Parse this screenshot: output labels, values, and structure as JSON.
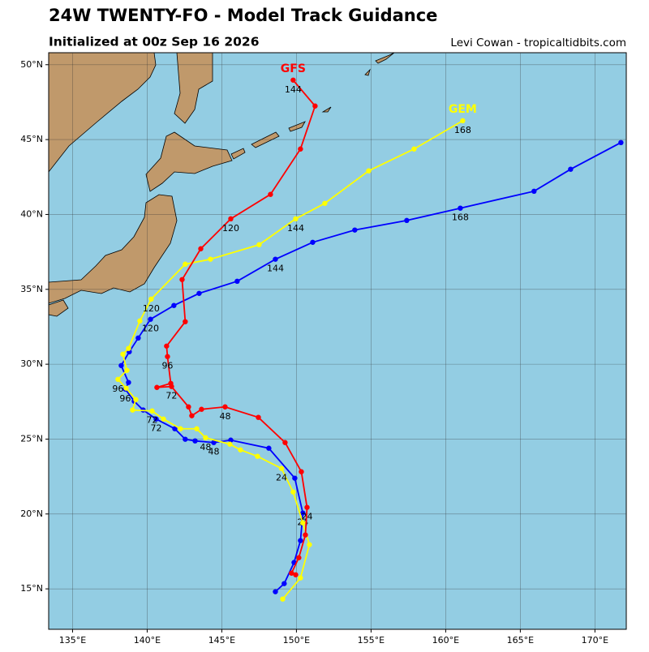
{
  "chart_data": {
    "type": "track-map",
    "title": "24W TWENTY-FO - Model Track Guidance",
    "subtitle": "Initialized at 00z Sep 16 2026",
    "credit": "Levi Cowan - tropicaltidbits.com",
    "xlim": [
      133.4,
      172.1
    ],
    "ylim": [
      12.3,
      50.8
    ],
    "xticks": [
      {
        "value": 135,
        "label": "135°E"
      },
      {
        "value": 140,
        "label": "140°E"
      },
      {
        "value": 145,
        "label": "145°E"
      },
      {
        "value": 150,
        "label": "150°E"
      },
      {
        "value": 155,
        "label": "155°E"
      },
      {
        "value": 160,
        "label": "160°E"
      },
      {
        "value": 165,
        "label": "165°E"
      },
      {
        "value": 170,
        "label": "170°E"
      }
    ],
    "yticks": [
      {
        "value": 15,
        "label": "15°N"
      },
      {
        "value": 20,
        "label": "20°N"
      },
      {
        "value": 25,
        "label": "25°N"
      },
      {
        "value": 30,
        "label": "30°N"
      },
      {
        "value": 35,
        "label": "35°N"
      },
      {
        "value": 40,
        "label": "40°N"
      },
      {
        "value": 45,
        "label": "45°N"
      },
      {
        "value": 50,
        "label": "50°N"
      }
    ],
    "grid": true,
    "series": [
      {
        "color": "#0000ff",
        "lon": [
          148.59,
          149.18,
          149.84,
          150.27,
          150.43,
          149.89,
          148.15,
          145.6,
          144.46,
          143.21,
          142.55,
          141.85,
          140.6,
          139.73,
          139.13,
          138.53,
          138.75,
          138.26,
          138.8,
          139.4,
          140.22,
          141.79,
          143.48,
          146.03,
          148.59,
          151.09,
          153.91,
          157.39,
          160.98,
          165.92,
          168.37,
          171.74
        ],
        "lat": [
          14.81,
          15.35,
          16.76,
          18.22,
          20.06,
          22.39,
          24.39,
          24.93,
          24.77,
          24.88,
          24.99,
          25.69,
          26.34,
          26.94,
          27.53,
          28.34,
          28.78,
          29.91,
          30.83,
          31.75,
          33.0,
          33.92,
          34.73,
          35.54,
          37.01,
          38.14,
          38.96,
          39.6,
          40.42,
          41.55,
          43.02,
          44.8
        ],
        "labels": [
          null,
          null,
          null,
          null,
          "24",
          null,
          null,
          null,
          "48",
          null,
          null,
          null,
          "72",
          null,
          null,
          "96",
          null,
          null,
          null,
          null,
          "120",
          null,
          null,
          null,
          "144",
          null,
          null,
          null,
          "168",
          null,
          null,
          null
        ]
      },
      {
        "name": "GEM",
        "color": "#ffff00",
        "lon": [
          149.08,
          150.27,
          150.87,
          150.43,
          149.78,
          149.0,
          147.39,
          146.25,
          145.54,
          143.91,
          143.32,
          142.23,
          141.09,
          140.33,
          139.02,
          139.24,
          138.59,
          138.04,
          138.64,
          138.37,
          138.75,
          139.51,
          140.27,
          142.55,
          144.24,
          147.5,
          149.95,
          151.9,
          154.84,
          157.88,
          161.14
        ],
        "lat": [
          14.32,
          15.73,
          17.95,
          19.41,
          21.47,
          23.04,
          23.85,
          24.28,
          24.66,
          25.09,
          25.69,
          25.69,
          26.34,
          26.88,
          26.94,
          27.64,
          28.4,
          28.99,
          29.59,
          30.67,
          31.05,
          32.89,
          34.35,
          36.68,
          37.01,
          37.98,
          39.71,
          40.74,
          42.91,
          44.37,
          46.26
        ],
        "labels": [
          null,
          null,
          null,
          null,
          null,
          "24",
          null,
          null,
          null,
          "48",
          null,
          null,
          null,
          "72",
          null,
          null,
          null,
          "96",
          null,
          null,
          null,
          null,
          "120",
          null,
          null,
          null,
          "144",
          null,
          null,
          null,
          "168"
        ]
      },
      {
        "name": "GFS",
        "color": "#ff0000",
        "lon": [
          149.95,
          149.67,
          150.16,
          150.6,
          150.71,
          150.33,
          149.24,
          147.45,
          145.22,
          143.64,
          142.99,
          142.77,
          141.63,
          140.65,
          141.58,
          141.36,
          141.3,
          142.55,
          142.34,
          143.59,
          145.6,
          148.26,
          150.27,
          151.25,
          149.78
        ],
        "lat": [
          15.94,
          16.05,
          17.08,
          18.6,
          20.44,
          22.82,
          24.77,
          26.45,
          27.15,
          26.99,
          26.56,
          27.15,
          28.51,
          28.45,
          28.72,
          30.51,
          31.21,
          32.84,
          35.65,
          37.71,
          39.71,
          41.34,
          44.37,
          47.24,
          48.97
        ],
        "labels": [
          null,
          null,
          null,
          null,
          "24",
          null,
          null,
          null,
          "48",
          null,
          null,
          null,
          "72",
          null,
          null,
          "96",
          null,
          null,
          null,
          null,
          "120",
          null,
          null,
          null,
          "144"
        ]
      }
    ]
  }
}
